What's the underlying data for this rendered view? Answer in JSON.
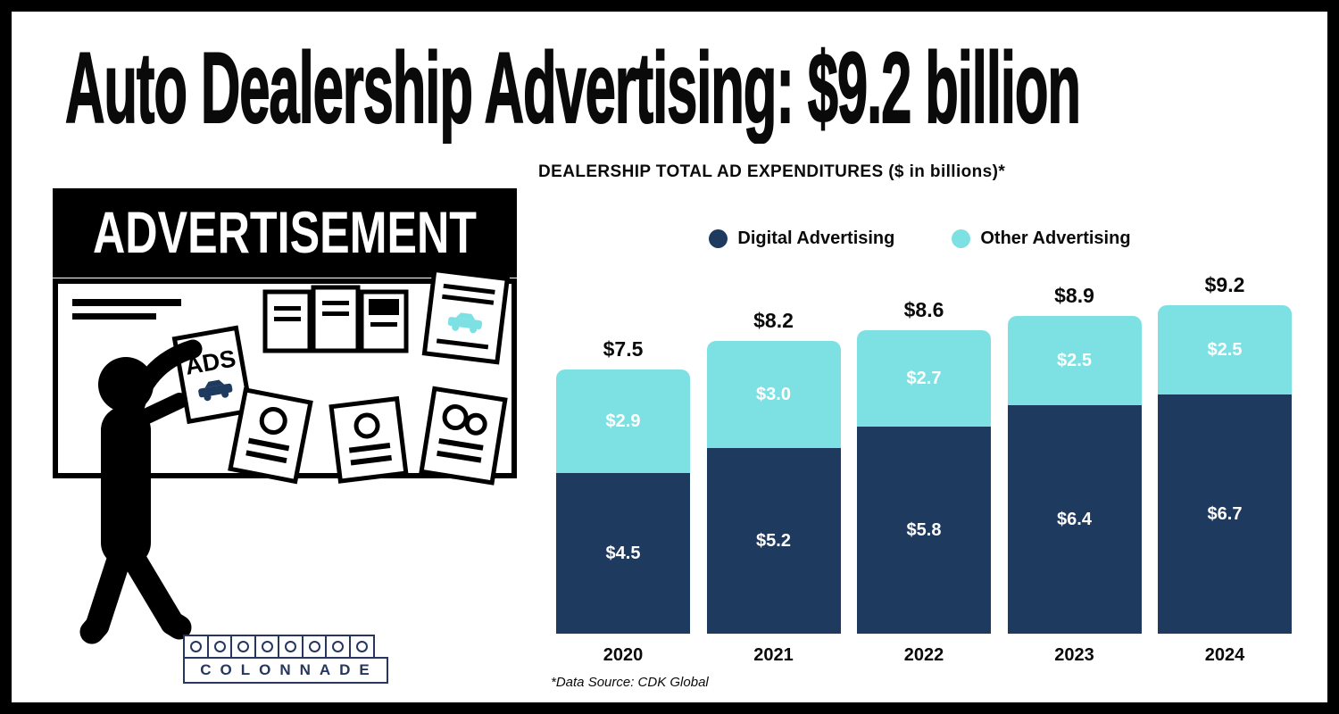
{
  "title": "Auto Dealership Advertising: $9.2 billion",
  "illustration": {
    "billboard_header": "ADVERTISEMENT",
    "ads_label": "ADS"
  },
  "logo": {
    "text": "COLONNADE"
  },
  "chart": {
    "heading": "DEALERSHIP TOTAL AD EXPENDITURES ($ in billions)*",
    "source_note": "*Data Source: CDK Global"
  },
  "chart_data": {
    "type": "bar",
    "stacked": true,
    "title": "DEALERSHIP TOTAL AD EXPENDITURES ($ in billions)*",
    "categories": [
      "2020",
      "2021",
      "2022",
      "2023",
      "2024"
    ],
    "series": [
      {
        "name": "Digital Advertising",
        "color": "#1e3a5f",
        "values": [
          4.5,
          5.2,
          5.8,
          6.4,
          6.7
        ]
      },
      {
        "name": "Other Advertising",
        "color": "#7de1e3",
        "values": [
          2.9,
          3.0,
          2.7,
          2.5,
          2.5
        ]
      }
    ],
    "totals": [
      7.5,
      8.2,
      8.6,
      8.9,
      9.2
    ],
    "value_prefix": "$",
    "legend_position": "top",
    "grid": false,
    "source": "*Data Source: CDK Global"
  },
  "colors": {
    "navy": "#1e3a5f",
    "teal": "#7de1e3",
    "black": "#000000",
    "logo_navy": "#26365f"
  }
}
